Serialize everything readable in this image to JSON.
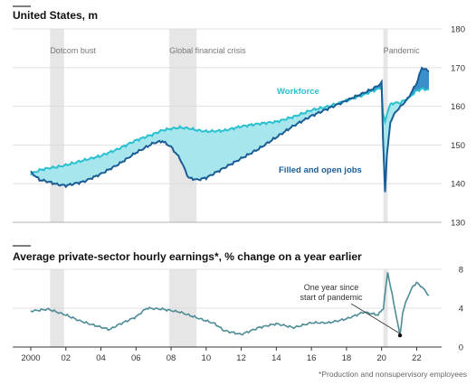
{
  "chart_data": [
    {
      "type": "area",
      "title": "United States, m",
      "x": [
        2000,
        2000.5,
        2001,
        2001.5,
        2002,
        2003,
        2004,
        2005,
        2006,
        2007,
        2007.5,
        2008,
        2008.5,
        2009,
        2009.5,
        2010,
        2011,
        2012,
        2013,
        2014,
        2015,
        2016,
        2017,
        2018,
        2019,
        2019.5,
        2020,
        2020.08,
        2020.2,
        2020.3,
        2020.5,
        2020.8,
        2021,
        2021.5,
        2022,
        2022.3,
        2022.7
      ],
      "series": [
        {
          "name": "Workforce",
          "values": [
            142.5,
            143.5,
            144,
            144.3,
            144.8,
            146,
            147.2,
            149,
            151.2,
            152.8,
            153.8,
            154.2,
            154.5,
            154.3,
            153.8,
            153.5,
            153.7,
            154.8,
            155.5,
            156,
            157.3,
            159,
            160,
            161.5,
            163,
            164,
            164.8,
            158,
            156,
            158,
            160.5,
            161,
            160.8,
            162,
            164,
            164.5,
            164.3
          ]
        },
        {
          "name": "Filled and open jobs",
          "values": [
            143,
            141,
            140.5,
            139.8,
            139.5,
            140.5,
            142.5,
            145,
            148,
            150.5,
            151,
            149.5,
            146.5,
            141.5,
            141,
            141.5,
            144,
            146.5,
            149,
            152,
            155,
            157.5,
            159.5,
            161.5,
            163.5,
            164.5,
            166,
            152,
            138,
            147,
            156,
            158.5,
            159.5,
            162,
            166,
            170,
            169
          ]
        }
      ],
      "shading": [
        [
          2001.1,
          2001.9
        ],
        [
          2007.9,
          2009.45
        ],
        [
          2020.1,
          2020.35
        ]
      ],
      "shading_labels": [
        "Dotcom bust",
        "Global financial crisis",
        "Pandemic"
      ],
      "ylim": [
        130,
        180
      ],
      "yticks": [
        130,
        140,
        150,
        160,
        170,
        180
      ],
      "grid": true
    },
    {
      "type": "line",
      "title": "Average private-sector hourly earnings*, % change on a year earlier",
      "x": [
        2000,
        2001,
        2002,
        2002.8,
        2003.5,
        2004.5,
        2005,
        2006,
        2006.6,
        2007.5,
        2008.5,
        2009.5,
        2010.5,
        2011,
        2012,
        2013,
        2014,
        2015,
        2016,
        2017,
        2018,
        2019,
        2019.8,
        2020.1,
        2020.35,
        2020.7,
        2021.05,
        2021.2,
        2021.45,
        2021.8,
        2022,
        2022.3,
        2022.7
      ],
      "series": [
        {
          "name": "",
          "values": [
            3.7,
            3.9,
            3.3,
            2.7,
            2.3,
            1.8,
            2.3,
            3.1,
            4.0,
            3.9,
            3.6,
            3.0,
            2.4,
            1.7,
            1.3,
            2.0,
            2.4,
            2.0,
            2.5,
            2.5,
            2.9,
            3.6,
            3.3,
            4.0,
            7.7,
            4.5,
            1.2,
            3.5,
            5.0,
            6.3,
            6.6,
            6.2,
            5.3
          ]
        }
      ],
      "shading": [
        [
          2001.1,
          2001.9
        ],
        [
          2007.9,
          2009.45
        ],
        [
          2020.1,
          2020.35
        ]
      ],
      "ylim": [
        0,
        8
      ],
      "yticks": [
        0,
        4,
        8
      ],
      "xticks": [
        "2000",
        "02",
        "04",
        "06",
        "08",
        "10",
        "12",
        "14",
        "16",
        "18",
        "20",
        "22"
      ],
      "annotation": "One year since start of pandemic",
      "annotation_lines": [
        "One year since",
        "start of pandemic"
      ],
      "annotation_point": [
        2021.05,
        1.2
      ],
      "grid": true
    }
  ],
  "footnote": "*Production and nonsupervisory employees",
  "colors": {
    "workforce": "#2bc0d0",
    "jobs": "#1a5d94",
    "gap_fill": "#a8e6ee",
    "jobs_above_fill": "#3a8ec9",
    "line": "#4e8c95",
    "shade": "#e6e6e6",
    "grid": "#d9d9d9"
  }
}
